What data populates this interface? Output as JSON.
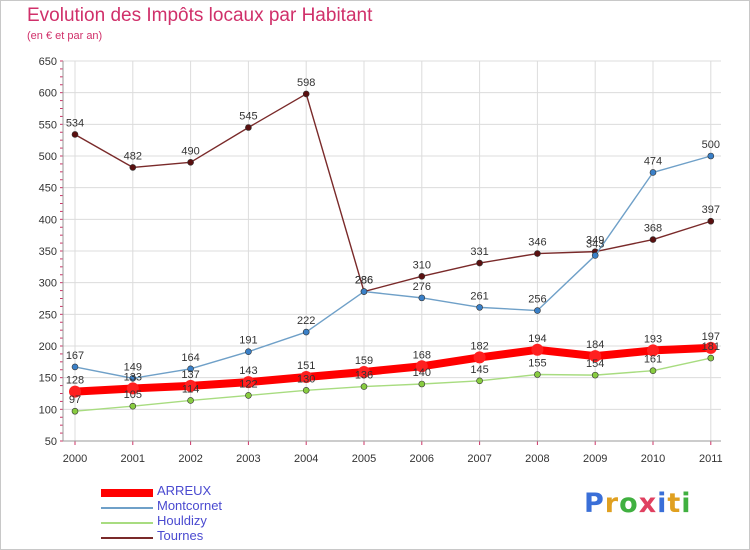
{
  "chart_data": {
    "type": "line",
    "title": "Evolution des Impôts locaux par Habitant",
    "subtitle": "(en € et par an)",
    "xlabel": "",
    "ylabel": "",
    "ylim": [
      50,
      650
    ],
    "yticks": [
      50,
      100,
      150,
      200,
      250,
      300,
      350,
      400,
      450,
      500,
      550,
      600,
      650
    ],
    "categories": [
      "2000",
      "2001",
      "2002",
      "2003",
      "2004",
      "2005",
      "2006",
      "2007",
      "2008",
      "2009",
      "2010",
      "2011"
    ],
    "series": [
      {
        "name": "Tournes",
        "color": "#7a2a2a",
        "marker": "#5a1010",
        "values": [
          534,
          482,
          490,
          545,
          598,
          286,
          310,
          331,
          346,
          349,
          368,
          397
        ]
      },
      {
        "name": "Montcornet",
        "color": "#6fa0c8",
        "marker": "#3a80c8",
        "values": [
          167,
          149,
          164,
          191,
          222,
          286,
          276,
          261,
          256,
          343,
          474,
          500
        ]
      },
      {
        "name": "Houldizy",
        "color": "#a8dc80",
        "marker": "#88cc40",
        "values": [
          97,
          105,
          114,
          122,
          130,
          136,
          140,
          145,
          155,
          154,
          161,
          181
        ]
      },
      {
        "name": "ARREUX",
        "color": "#ff0000",
        "marker": "#ff2020",
        "values": [
          128,
          133,
          137,
          143,
          151,
          159,
          168,
          182,
          194,
          184,
          193,
          197
        ]
      }
    ],
    "legend": [
      "ARREUX",
      "Montcornet",
      "Houldizy",
      "Tournes"
    ],
    "legend_position": "bottom-left"
  },
  "logo": {
    "text": "Proxiti",
    "colors": [
      "#3a6fd8",
      "#e0a020",
      "#40b040",
      "#e04060",
      "#3a6fd8",
      "#e0a020",
      "#40b040"
    ]
  }
}
